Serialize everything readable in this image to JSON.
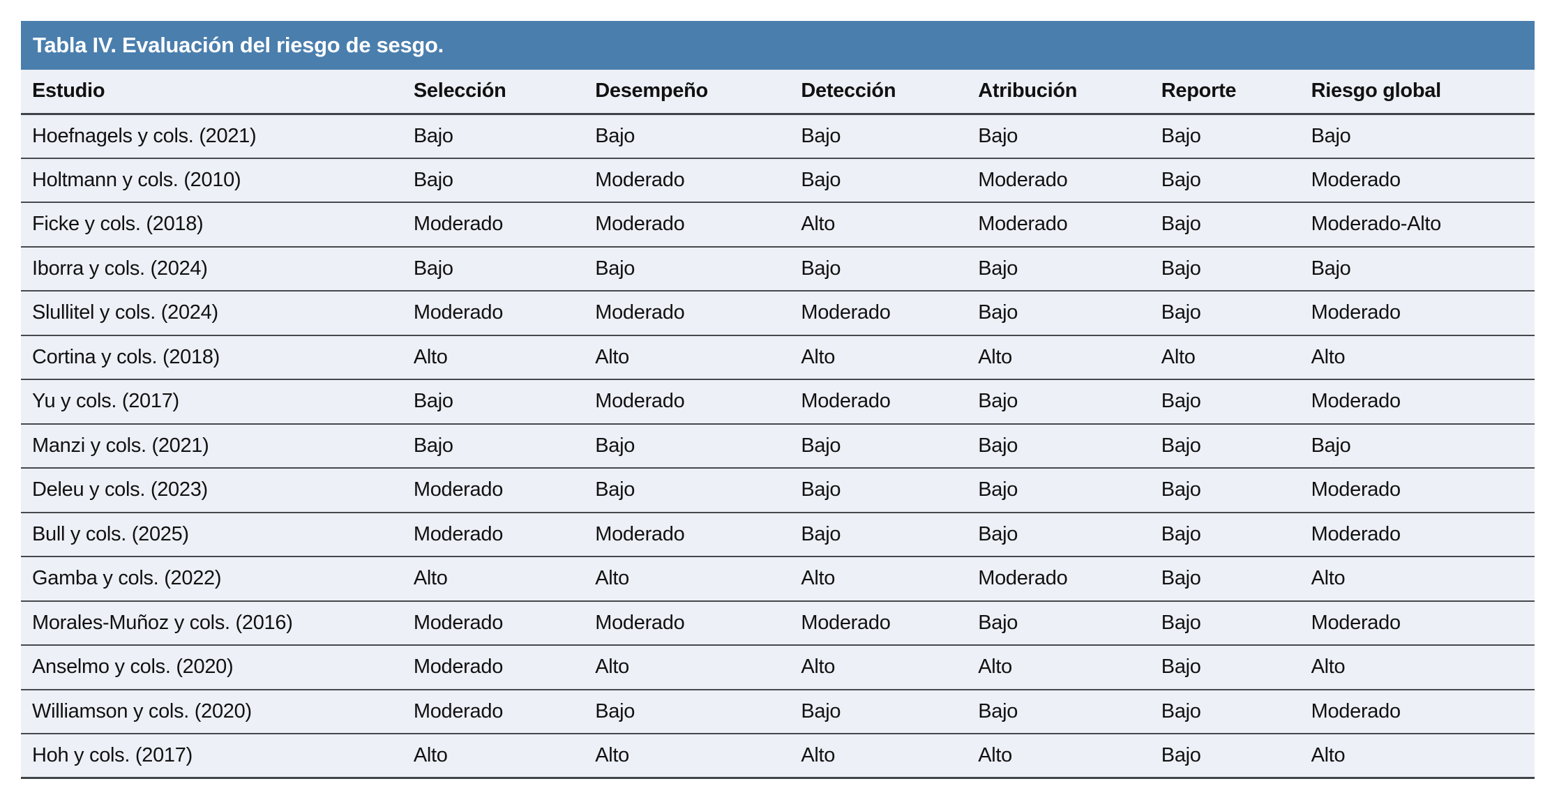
{
  "table": {
    "title": "Tabla IV. Evaluación del riesgo de sesgo.",
    "columns": [
      "Estudio",
      "Selección",
      "Desempeño",
      "Detección",
      "Atribución",
      "Reporte",
      "Riesgo global"
    ],
    "rows": [
      [
        "Hoefnagels y cols. (2021)",
        "Bajo",
        "Bajo",
        "Bajo",
        "Bajo",
        "Bajo",
        "Bajo"
      ],
      [
        "Holtmann y cols. (2010)",
        "Bajo",
        "Moderado",
        "Bajo",
        "Moderado",
        "Bajo",
        "Moderado"
      ],
      [
        "Ficke y cols. (2018)",
        "Moderado",
        "Moderado",
        "Alto",
        "Moderado",
        "Bajo",
        "Moderado-Alto"
      ],
      [
        "Iborra y cols. (2024)",
        "Bajo",
        "Bajo",
        "Bajo",
        "Bajo",
        "Bajo",
        "Bajo"
      ],
      [
        "Slullitel y cols. (2024)",
        "Moderado",
        "Moderado",
        "Moderado",
        "Bajo",
        "Bajo",
        "Moderado"
      ],
      [
        "Cortina y cols. (2018)",
        "Alto",
        "Alto",
        "Alto",
        "Alto",
        "Alto",
        "Alto"
      ],
      [
        "Yu y cols. (2017)",
        "Bajo",
        "Moderado",
        "Moderado",
        "Bajo",
        "Bajo",
        "Moderado"
      ],
      [
        "Manzi y cols. (2021)",
        "Bajo",
        "Bajo",
        "Bajo",
        "Bajo",
        "Bajo",
        "Bajo"
      ],
      [
        "Deleu y cols. (2023)",
        "Moderado",
        "Bajo",
        "Bajo",
        "Bajo",
        "Bajo",
        "Moderado"
      ],
      [
        "Bull y cols. (2025)",
        "Moderado",
        "Moderado",
        "Bajo",
        "Bajo",
        "Bajo",
        "Moderado"
      ],
      [
        "Gamba y cols. (2022)",
        "Alto",
        "Alto",
        "Alto",
        "Moderado",
        "Bajo",
        "Alto"
      ],
      [
        "Morales-Muñoz y cols. (2016)",
        "Moderado",
        "Moderado",
        "Moderado",
        "Bajo",
        "Bajo",
        "Moderado"
      ],
      [
        "Anselmo y cols. (2020)",
        "Moderado",
        "Alto",
        "Alto",
        "Alto",
        "Bajo",
        "Alto"
      ],
      [
        "Williamson y cols. (2020)",
        "Moderado",
        "Bajo",
        "Bajo",
        "Bajo",
        "Bajo",
        "Moderado"
      ],
      [
        "Hoh y cols. (2017)",
        "Alto",
        "Alto",
        "Alto",
        "Alto",
        "Bajo",
        "Alto"
      ]
    ],
    "colors": {
      "title_bar": "#4A7EAD",
      "row_background": "#EDF0F6",
      "separator": "#45484C",
      "title_text": "#FFFFFF",
      "body_text": "#111111"
    }
  }
}
